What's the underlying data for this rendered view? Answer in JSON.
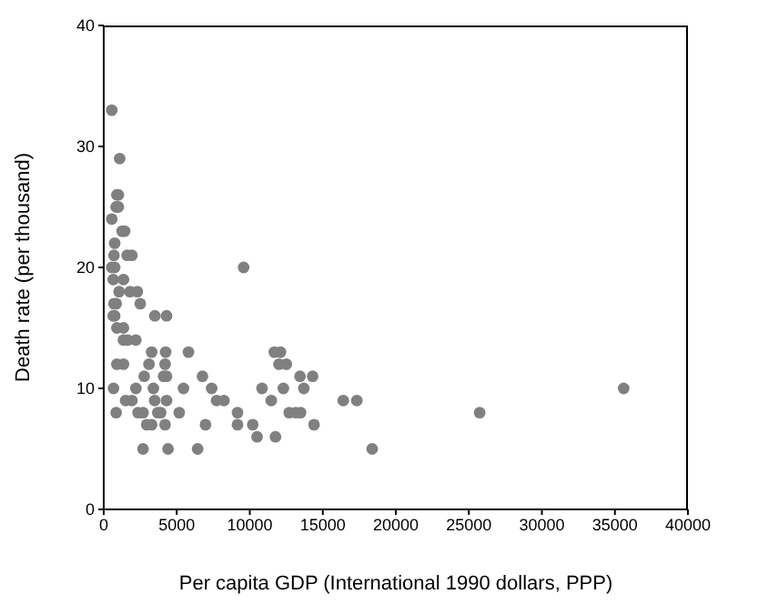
{
  "chart_data": {
    "type": "scatter",
    "xlabel": "Per capita GDP (International 1990 dollars, PPP)",
    "ylabel": "Death rate (per thousand)",
    "xlim": [
      0,
      40000
    ],
    "xticks": [
      0,
      5000,
      10000,
      15000,
      20000,
      25000,
      30000,
      35000,
      40000
    ],
    "ylim": [
      0,
      40
    ],
    "yticks": [
      0,
      10,
      20,
      30,
      40
    ],
    "marker": "circle",
    "series": [
      {
        "color": "#808080",
        "x": [
          550,
          1090,
          900,
          1000,
          850,
          1000,
          550,
          750,
          1260,
          1430,
          700,
          1600,
          1930,
          550,
          750,
          650,
          1350,
          1050,
          1800,
          2300,
          700,
          850,
          2500,
          650,
          750,
          3500,
          4300,
          900,
          1350,
          1350,
          1650,
          2200,
          900,
          1350,
          670,
          850,
          2200,
          2770,
          1500,
          1930,
          2350,
          2690,
          2940,
          3280,
          2690,
          3280,
          3100,
          3400,
          3490,
          3700,
          3900,
          4200,
          4100,
          4300,
          4240,
          4200,
          4300,
          4400,
          5800,
          5460,
          5170,
          6430,
          6760,
          6970,
          7390,
          7730,
          8230,
          9160,
          9160,
          9580,
          10200,
          10500,
          10840,
          11470,
          11760,
          11680,
          12100,
          12000,
          12500,
          12300,
          12700,
          13150,
          13480,
          13440,
          13700,
          14300,
          14400,
          16400,
          17330,
          18380,
          25740,
          35600
        ],
        "values": [
          33,
          29,
          26,
          26,
          25,
          25,
          24,
          22,
          23,
          23,
          21,
          21,
          21,
          20,
          20,
          19,
          19,
          18,
          18,
          18,
          17,
          17,
          17,
          16,
          16,
          16,
          16,
          15,
          15,
          14,
          14,
          14,
          12,
          12,
          10,
          8,
          10,
          11,
          9,
          9,
          8,
          8,
          7,
          7,
          5,
          13,
          12,
          10,
          9,
          8,
          8,
          7,
          11,
          11,
          13,
          12,
          9,
          5,
          13,
          10,
          8,
          5,
          11,
          7,
          10,
          9,
          9,
          8,
          7,
          20,
          7,
          6,
          10,
          9,
          6,
          13,
          13,
          12,
          12,
          10,
          8,
          8,
          8,
          11,
          10,
          11,
          7,
          9,
          9,
          5,
          8,
          10
        ]
      }
    ]
  }
}
